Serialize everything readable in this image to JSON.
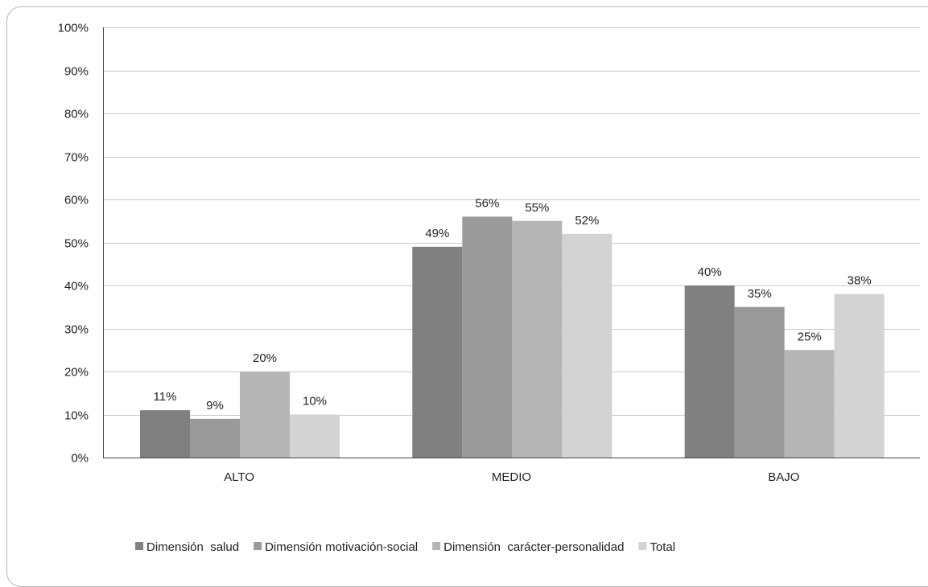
{
  "chart_data": {
    "type": "bar",
    "categories": [
      "ALTO",
      "MEDIO",
      "BAJO"
    ],
    "series": [
      {
        "name": "Dimensión  salud",
        "values": [
          11,
          49,
          40
        ],
        "color": "#808080"
      },
      {
        "name": "Dimensión motivación-social",
        "values": [
          9,
          56,
          35
        ],
        "color": "#9a9a9a"
      },
      {
        "name": "Dimensión  carácter-personalidad",
        "values": [
          20,
          55,
          25
        ],
        "color": "#b5b5b5"
      },
      {
        "name": "Total",
        "values": [
          10,
          52,
          38
        ],
        "color": "#d3d3d3"
      }
    ],
    "data_labels": [
      [
        "11%",
        "49%",
        "40%"
      ],
      [
        "9%",
        "56%",
        "35%"
      ],
      [
        "20%",
        "55%",
        "25%"
      ],
      [
        "10%",
        "52%",
        "38%"
      ]
    ],
    "y_ticks": [
      "0%",
      "10%",
      "20%",
      "30%",
      "40%",
      "50%",
      "60%",
      "70%",
      "80%",
      "90%",
      "100%"
    ],
    "ylim": [
      0,
      100
    ],
    "grid": true,
    "legend_position": "bottom"
  }
}
